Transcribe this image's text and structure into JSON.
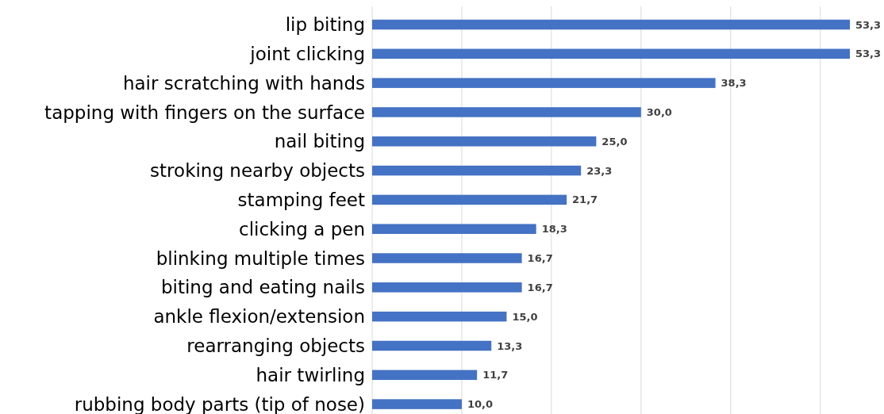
{
  "chart_data": {
    "type": "bar",
    "orientation": "horizontal",
    "categories": [
      "lip biting",
      "joint clicking",
      "hair scratching with hands",
      "tapping with fingers on the surface",
      "nail biting",
      "stroking nearby objects",
      "stamping feet",
      "clicking a pen",
      "blinking multiple times",
      "biting and eating nails",
      "ankle flexion/extension",
      "rearranging objects",
      "hair twirling",
      "rubbing body parts (tip of nose)"
    ],
    "values": [
      53.3,
      53.3,
      38.3,
      30.0,
      25.0,
      23.3,
      21.7,
      18.3,
      16.7,
      16.7,
      15.0,
      13.3,
      11.7,
      10.0
    ],
    "value_labels": [
      "53,3",
      "53,3",
      "38,3",
      "30,0",
      "25,0",
      "23,3",
      "21,7",
      "18,3",
      "16,7",
      "16,7",
      "15,0",
      "13,3",
      "11,7",
      "10,0"
    ],
    "color": "#4472c4",
    "xticks": [
      {
        "value": 0,
        "label": null
      },
      {
        "value": 10,
        "label": null
      },
      {
        "value": 20,
        "label": null
      },
      {
        "value": 30,
        "label": null
      },
      {
        "value": 40,
        "label": null
      },
      {
        "value": 50,
        "label": null
      }
    ],
    "grid": "x"
  }
}
